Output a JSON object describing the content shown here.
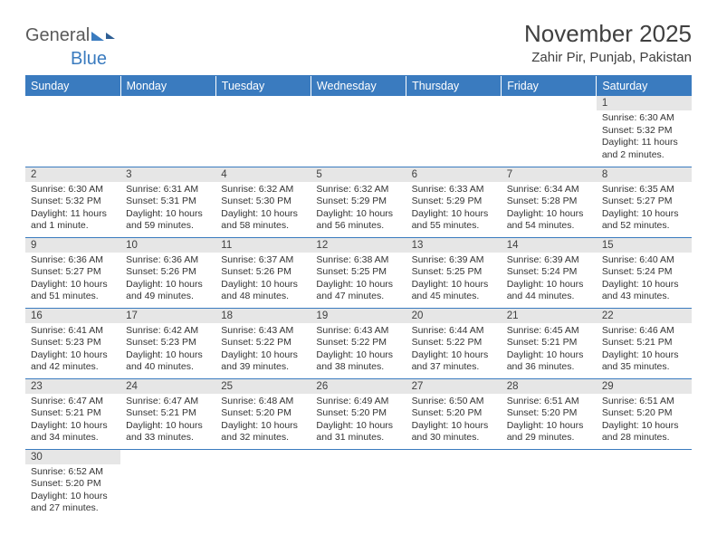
{
  "brand": {
    "part1": "General",
    "part2": "Blue"
  },
  "title": "November 2025",
  "location": "Zahir Pir, Punjab, Pakistan",
  "day_headers": [
    "Sunday",
    "Monday",
    "Tuesday",
    "Wednesday",
    "Thursday",
    "Friday",
    "Saturday"
  ],
  "colors": {
    "header_bg": "#3a7bbf",
    "header_text": "#ffffff",
    "daynum_bg": "#e6e6e6",
    "divider": "#3a7bbf",
    "text": "#333333"
  },
  "weeks": [
    [
      null,
      null,
      null,
      null,
      null,
      null,
      {
        "n": "1",
        "sr": "6:30 AM",
        "ss": "5:32 PM",
        "dl": "11 hours and 2 minutes."
      }
    ],
    [
      {
        "n": "2",
        "sr": "6:30 AM",
        "ss": "5:32 PM",
        "dl": "11 hours and 1 minute."
      },
      {
        "n": "3",
        "sr": "6:31 AM",
        "ss": "5:31 PM",
        "dl": "10 hours and 59 minutes."
      },
      {
        "n": "4",
        "sr": "6:32 AM",
        "ss": "5:30 PM",
        "dl": "10 hours and 58 minutes."
      },
      {
        "n": "5",
        "sr": "6:32 AM",
        "ss": "5:29 PM",
        "dl": "10 hours and 56 minutes."
      },
      {
        "n": "6",
        "sr": "6:33 AM",
        "ss": "5:29 PM",
        "dl": "10 hours and 55 minutes."
      },
      {
        "n": "7",
        "sr": "6:34 AM",
        "ss": "5:28 PM",
        "dl": "10 hours and 54 minutes."
      },
      {
        "n": "8",
        "sr": "6:35 AM",
        "ss": "5:27 PM",
        "dl": "10 hours and 52 minutes."
      }
    ],
    [
      {
        "n": "9",
        "sr": "6:36 AM",
        "ss": "5:27 PM",
        "dl": "10 hours and 51 minutes."
      },
      {
        "n": "10",
        "sr": "6:36 AM",
        "ss": "5:26 PM",
        "dl": "10 hours and 49 minutes."
      },
      {
        "n": "11",
        "sr": "6:37 AM",
        "ss": "5:26 PM",
        "dl": "10 hours and 48 minutes."
      },
      {
        "n": "12",
        "sr": "6:38 AM",
        "ss": "5:25 PM",
        "dl": "10 hours and 47 minutes."
      },
      {
        "n": "13",
        "sr": "6:39 AM",
        "ss": "5:25 PM",
        "dl": "10 hours and 45 minutes."
      },
      {
        "n": "14",
        "sr": "6:39 AM",
        "ss": "5:24 PM",
        "dl": "10 hours and 44 minutes."
      },
      {
        "n": "15",
        "sr": "6:40 AM",
        "ss": "5:24 PM",
        "dl": "10 hours and 43 minutes."
      }
    ],
    [
      {
        "n": "16",
        "sr": "6:41 AM",
        "ss": "5:23 PM",
        "dl": "10 hours and 42 minutes."
      },
      {
        "n": "17",
        "sr": "6:42 AM",
        "ss": "5:23 PM",
        "dl": "10 hours and 40 minutes."
      },
      {
        "n": "18",
        "sr": "6:43 AM",
        "ss": "5:22 PM",
        "dl": "10 hours and 39 minutes."
      },
      {
        "n": "19",
        "sr": "6:43 AM",
        "ss": "5:22 PM",
        "dl": "10 hours and 38 minutes."
      },
      {
        "n": "20",
        "sr": "6:44 AM",
        "ss": "5:22 PM",
        "dl": "10 hours and 37 minutes."
      },
      {
        "n": "21",
        "sr": "6:45 AM",
        "ss": "5:21 PM",
        "dl": "10 hours and 36 minutes."
      },
      {
        "n": "22",
        "sr": "6:46 AM",
        "ss": "5:21 PM",
        "dl": "10 hours and 35 minutes."
      }
    ],
    [
      {
        "n": "23",
        "sr": "6:47 AM",
        "ss": "5:21 PM",
        "dl": "10 hours and 34 minutes."
      },
      {
        "n": "24",
        "sr": "6:47 AM",
        "ss": "5:21 PM",
        "dl": "10 hours and 33 minutes."
      },
      {
        "n": "25",
        "sr": "6:48 AM",
        "ss": "5:20 PM",
        "dl": "10 hours and 32 minutes."
      },
      {
        "n": "26",
        "sr": "6:49 AM",
        "ss": "5:20 PM",
        "dl": "10 hours and 31 minutes."
      },
      {
        "n": "27",
        "sr": "6:50 AM",
        "ss": "5:20 PM",
        "dl": "10 hours and 30 minutes."
      },
      {
        "n": "28",
        "sr": "6:51 AM",
        "ss": "5:20 PM",
        "dl": "10 hours and 29 minutes."
      },
      {
        "n": "29",
        "sr": "6:51 AM",
        "ss": "5:20 PM",
        "dl": "10 hours and 28 minutes."
      }
    ],
    [
      {
        "n": "30",
        "sr": "6:52 AM",
        "ss": "5:20 PM",
        "dl": "10 hours and 27 minutes."
      },
      null,
      null,
      null,
      null,
      null,
      null
    ]
  ],
  "labels": {
    "sunrise": "Sunrise: ",
    "sunset": "Sunset: ",
    "daylight": "Daylight: "
  }
}
